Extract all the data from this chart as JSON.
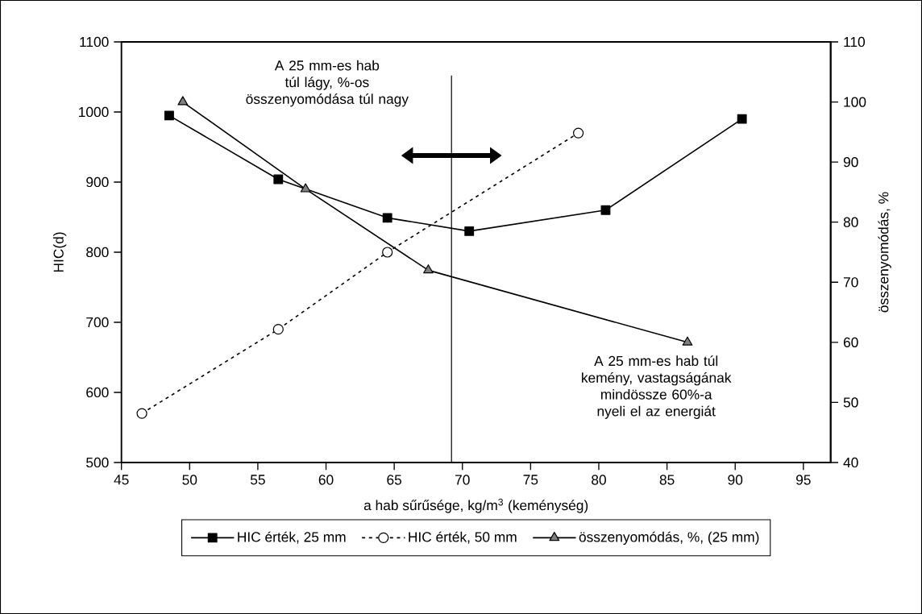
{
  "chart_data": {
    "type": "line",
    "xlabel": "a hab sűrűsége, kg/m$^{3}$ (keménység)",
    "ylabel": "HIC(d)",
    "y2label": "összenyomódás, %",
    "xlim": [
      45,
      97
    ],
    "xticks": [
      45,
      50,
      55,
      60,
      65,
      70,
      75,
      80,
      85,
      90,
      95
    ],
    "ylim": [
      500,
      1100
    ],
    "yticks": [
      500,
      600,
      700,
      800,
      900,
      1000,
      1100
    ],
    "y2lim": [
      40,
      110
    ],
    "y2ticks": [
      40,
      50,
      60,
      70,
      80,
      90,
      100,
      110
    ],
    "series": [
      {
        "name": "HIC érték, 25 mm",
        "color": "#000000",
        "marker": "square",
        "line_style": "solid",
        "x": [
          48.5,
          56.5,
          64.5,
          70.5,
          80.5,
          90.5
        ],
        "values": [
          995,
          904,
          849,
          830,
          860,
          990
        ]
      },
      {
        "name": "HIC érték, 50 mm",
        "color": "#ffffff",
        "marker": "circle",
        "line_style": "dashed",
        "x": [
          46.5,
          56.5,
          64.5,
          78.5
        ],
        "values": [
          570,
          690,
          800,
          970
        ]
      },
      {
        "name": "összenyomódás, %, (25 mm)",
        "color": "#808080",
        "marker": "triangle",
        "line_style": "solid",
        "axis": "y2",
        "x": [
          49.5,
          58.5,
          67.5,
          86.5
        ],
        "values": [
          100,
          85.5,
          72,
          60
        ]
      }
    ],
    "ref_lines": [
      {
        "axis": "x",
        "value": 69.2
      }
    ],
    "annotations": [
      "A 25 mm-es hab túl lágy, %-os összenyomódása túl nagy",
      "A 25 mm-es hab túl kemény, vastagságának mindössze 60%-a nyeli el az energiát"
    ],
    "legend": "bottom",
    "grid": false
  }
}
